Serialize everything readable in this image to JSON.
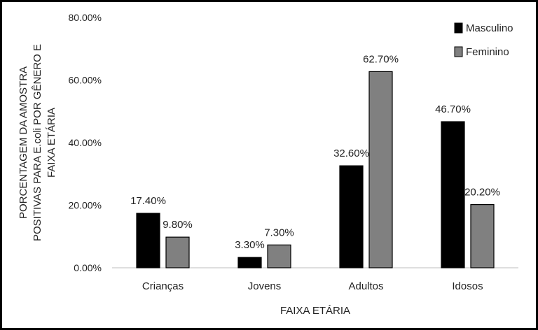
{
  "chart_data": {
    "type": "bar",
    "categories": [
      "Crianças",
      "Jovens",
      "Adultos",
      "Idosos"
    ],
    "series": [
      {
        "name": "Masculino",
        "values": [
          17.4,
          3.3,
          32.6,
          46.7
        ],
        "labels": [
          "17.40%",
          "3.30%",
          "32.60%",
          "46.70%"
        ],
        "color": "#000000"
      },
      {
        "name": "Feminino",
        "values": [
          9.8,
          7.3,
          62.7,
          20.2
        ],
        "labels": [
          "9.80%",
          "7.30%",
          "62.70%",
          "20.20%"
        ],
        "color": "#808080"
      }
    ],
    "xlabel": "FAIXA ETÁRIA",
    "ylabel_lines": [
      "PORCENTAGEM DA AMOSTRA",
      "POSITIVAS PARA E.coli POR GÊNERO E",
      "FAIXA ETÁRIA"
    ],
    "ylim": [
      0,
      80
    ],
    "yticks": [
      0,
      20,
      40,
      60,
      80
    ],
    "ytick_labels": [
      "0.00%",
      "20.00%",
      "40.00%",
      "60.00%",
      "80.00%"
    ],
    "legend_position": "top-right",
    "grid": false
  }
}
